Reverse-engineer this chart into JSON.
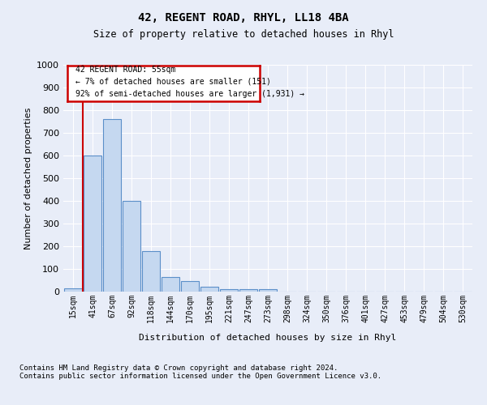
{
  "title1": "42, REGENT ROAD, RHYL, LL18 4BA",
  "title2": "Size of property relative to detached houses in Rhyl",
  "xlabel": "Distribution of detached houses by size in Rhyl",
  "ylabel": "Number of detached properties",
  "annotation_line1": "42 REGENT ROAD: 55sqm",
  "annotation_line2": "← 7% of detached houses are smaller (151)",
  "annotation_line3": "92% of semi-detached houses are larger (1,931) →",
  "footnote": "Contains HM Land Registry data © Crown copyright and database right 2024.\nContains public sector information licensed under the Open Government Licence v3.0.",
  "bar_labels": [
    "15sqm",
    "41sqm",
    "67sqm",
    "92sqm",
    "118sqm",
    "144sqm",
    "170sqm",
    "195sqm",
    "221sqm",
    "247sqm",
    "273sqm",
    "298sqm",
    "324sqm",
    "350sqm",
    "376sqm",
    "401sqm",
    "427sqm",
    "453sqm",
    "479sqm",
    "504sqm",
    "530sqm"
  ],
  "bar_values": [
    15,
    600,
    760,
    400,
    180,
    65,
    45,
    20,
    10,
    10,
    10,
    0,
    0,
    0,
    0,
    0,
    0,
    0,
    0,
    0,
    0
  ],
  "bar_color": "#c5d8f0",
  "bar_edge_color": "#5b8fc9",
  "redline_x": 0.5,
  "ylim": [
    0,
    1000
  ],
  "yticks": [
    0,
    100,
    200,
    300,
    400,
    500,
    600,
    700,
    800,
    900,
    1000
  ],
  "bg_color": "#e8edf8",
  "plot_bg": "#e8edf8",
  "grid_color": "#ffffff",
  "annotation_box_facecolor": "#ffffff",
  "annotation_box_edgecolor": "#cc0000",
  "redline_color": "#cc0000"
}
